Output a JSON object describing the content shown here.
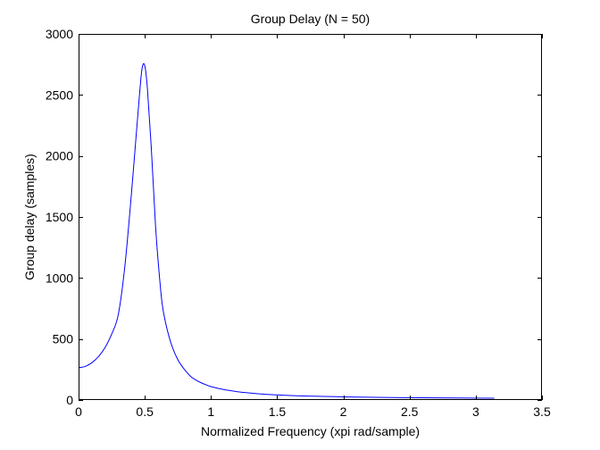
{
  "chart_data": {
    "type": "line",
    "title": "Group Delay (N = 50)",
    "xlabel": "Normalized Frequency (xpi rad/sample)",
    "ylabel": "Group delay (samples)",
    "xlim": [
      0,
      3.5
    ],
    "ylim": [
      0,
      3000
    ],
    "xticks": [
      0,
      0.5,
      1,
      1.5,
      2,
      2.5,
      3,
      3.5
    ],
    "xtick_labels": [
      "0",
      "0.5",
      "1",
      "1.5",
      "2",
      "2.5",
      "3",
      "3.5"
    ],
    "yticks": [
      0,
      500,
      1000,
      1500,
      2000,
      2500,
      3000
    ],
    "ytick_labels": [
      "0",
      "500",
      "1000",
      "1500",
      "2000",
      "2500",
      "3000"
    ],
    "grid": false,
    "box": true,
    "series": [
      {
        "color": "#0000ff",
        "x": [
          0,
          0.05,
          0.1,
          0.15,
          0.2,
          0.25,
          0.3,
          0.35,
          0.4,
          0.43,
          0.46,
          0.48,
          0.5,
          0.52,
          0.55,
          0.58,
          0.6,
          0.63,
          0.66,
          0.7,
          0.75,
          0.8,
          0.85,
          0.9,
          0.95,
          1.0,
          1.1,
          1.2,
          1.3,
          1.4,
          1.5,
          1.7,
          2.0,
          2.3,
          2.6,
          2.9,
          3.14
        ],
        "y": [
          265,
          275,
          305,
          355,
          430,
          540,
          700,
          1100,
          1700,
          2100,
          2500,
          2720,
          2740,
          2550,
          2050,
          1450,
          1150,
          800,
          620,
          460,
          330,
          250,
          190,
          155,
          130,
          110,
          85,
          68,
          57,
          48,
          42,
          33,
          26,
          21,
          18,
          16,
          15
        ]
      }
    ]
  }
}
